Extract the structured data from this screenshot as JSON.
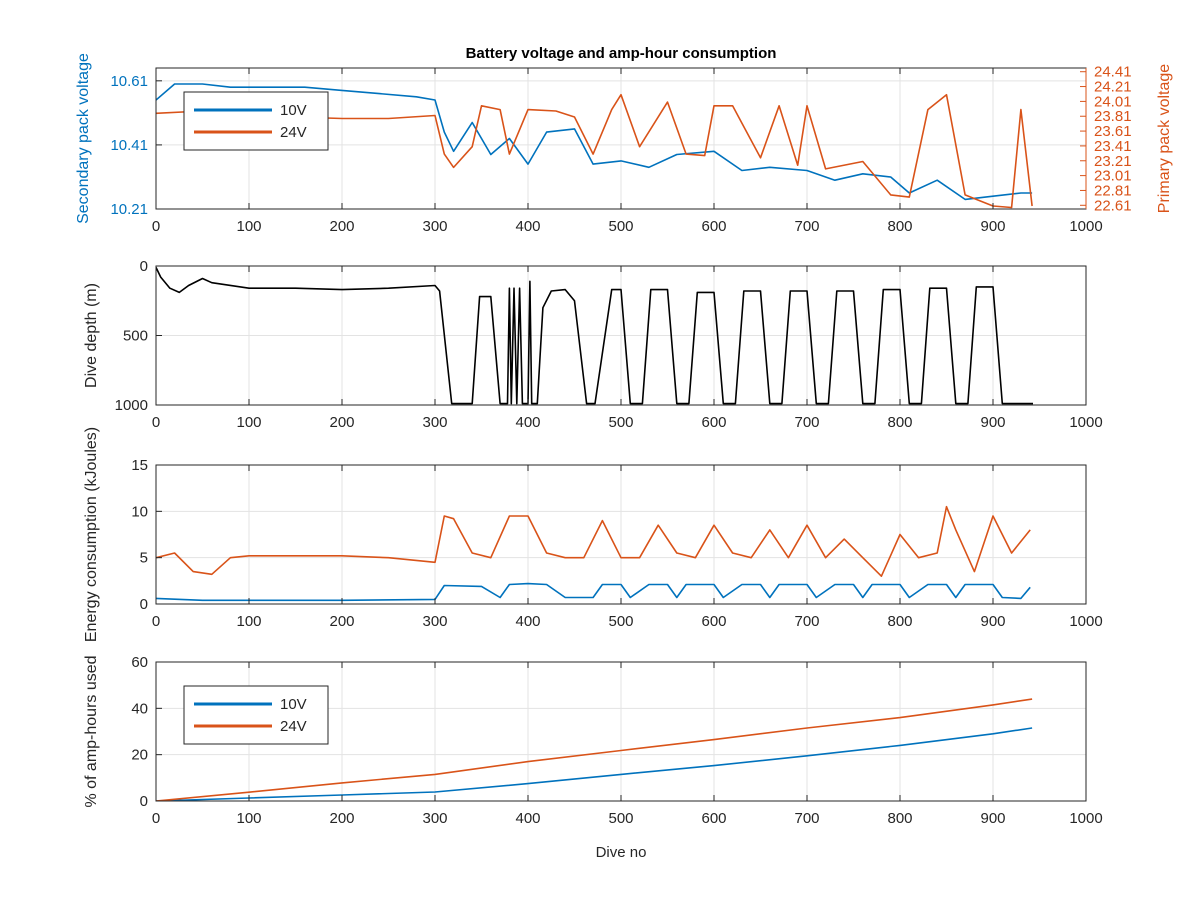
{
  "figure": {
    "title": "Battery voltage and amp-hour consumption"
  },
  "colors": {
    "blue": "#0072bd",
    "orange": "#d95319",
    "black": "#000000",
    "grid": "#e3e3e3",
    "axis": "#262626"
  },
  "chart_data": [
    {
      "type": "line",
      "title": "Battery voltage and amp-hour consumption",
      "xlabel": "",
      "ylabel": "Secondary pack voltage",
      "ylabel_right": "Primary pack voltage",
      "xlim": [
        0,
        1000
      ],
      "ylim": [
        10.21,
        10.65
      ],
      "ylim_right": [
        22.56,
        24.46
      ],
      "xticks": [
        0,
        100,
        200,
        300,
        400,
        500,
        600,
        700,
        800,
        900,
        1000
      ],
      "yticks": [
        10.21,
        10.41,
        10.61
      ],
      "yticks_right": [
        22.61,
        22.81,
        23.01,
        23.21,
        23.41,
        23.61,
        23.81,
        24.01,
        24.21,
        24.41
      ],
      "grid": true,
      "legend": {
        "placement": "top-left",
        "entries": [
          "10V",
          "24V"
        ]
      },
      "series": [
        {
          "name": "10V",
          "axis": "left",
          "color": "#0072bd",
          "x": [
            0,
            20,
            50,
            80,
            120,
            160,
            200,
            240,
            280,
            300,
            310,
            320,
            340,
            360,
            380,
            400,
            420,
            450,
            470,
            500,
            530,
            560,
            600,
            630,
            660,
            700,
            730,
            760,
            790,
            810,
            840,
            870,
            900,
            930,
            942
          ],
          "y": [
            10.55,
            10.6,
            10.6,
            10.59,
            10.59,
            10.59,
            10.58,
            10.57,
            10.56,
            10.55,
            10.45,
            10.39,
            10.48,
            10.38,
            10.43,
            10.35,
            10.45,
            10.46,
            10.35,
            10.36,
            10.34,
            10.38,
            10.39,
            10.33,
            10.34,
            10.33,
            10.3,
            10.32,
            10.31,
            10.26,
            10.3,
            10.24,
            10.25,
            10.26,
            10.26
          ]
        },
        {
          "name": "24V",
          "axis": "right",
          "color": "#d95319",
          "x": [
            0,
            50,
            100,
            200,
            250,
            300,
            310,
            320,
            340,
            350,
            370,
            380,
            400,
            430,
            450,
            470,
            490,
            500,
            520,
            550,
            570,
            590,
            600,
            620,
            650,
            670,
            690,
            700,
            720,
            760,
            790,
            810,
            830,
            850,
            870,
            880,
            900,
            920,
            930,
            942
          ],
          "y": [
            23.85,
            23.88,
            23.82,
            23.78,
            23.78,
            23.82,
            23.3,
            23.12,
            23.4,
            23.95,
            23.9,
            23.3,
            23.9,
            23.88,
            23.8,
            23.3,
            23.9,
            24.1,
            23.4,
            24.0,
            23.3,
            23.28,
            23.95,
            23.95,
            23.25,
            23.95,
            23.15,
            23.95,
            23.1,
            23.2,
            22.75,
            22.72,
            23.9,
            24.1,
            22.75,
            22.7,
            22.6,
            22.58,
            23.9,
            22.6
          ]
        }
      ]
    },
    {
      "type": "line",
      "xlabel": "",
      "ylabel": "Dive depth (m)",
      "xlim": [
        0,
        1000
      ],
      "ylim": [
        0,
        1000
      ],
      "y_reversed": true,
      "xticks": [
        0,
        100,
        200,
        300,
        400,
        500,
        600,
        700,
        800,
        900,
        1000
      ],
      "yticks": [
        0,
        500,
        1000
      ],
      "grid": true,
      "series": [
        {
          "name": "",
          "color": "#000000",
          "x": [
            0,
            5,
            15,
            25,
            35,
            50,
            60,
            100,
            150,
            200,
            250,
            300,
            305,
            318,
            340,
            348,
            360,
            370,
            378,
            380,
            382,
            385,
            388,
            391,
            394,
            400,
            402,
            404,
            410,
            416,
            425,
            440,
            450,
            463,
            472,
            490,
            500,
            510,
            523,
            532,
            550,
            560,
            573,
            582,
            600,
            610,
            623,
            632,
            650,
            660,
            673,
            682,
            700,
            710,
            723,
            732,
            750,
            760,
            773,
            782,
            800,
            810,
            823,
            832,
            850,
            860,
            873,
            882,
            900,
            910,
            923,
            932,
            943
          ],
          "y": [
            10,
            80,
            160,
            190,
            140,
            90,
            120,
            160,
            160,
            170,
            160,
            140,
            180,
            990,
            990,
            220,
            220,
            990,
            990,
            160,
            990,
            160,
            990,
            160,
            990,
            990,
            110,
            990,
            990,
            300,
            180,
            170,
            250,
            990,
            990,
            170,
            170,
            990,
            990,
            170,
            170,
            990,
            990,
            190,
            190,
            990,
            990,
            180,
            180,
            990,
            990,
            180,
            180,
            990,
            990,
            180,
            180,
            990,
            990,
            170,
            170,
            990,
            990,
            160,
            160,
            990,
            990,
            150,
            150,
            990,
            990,
            990,
            990
          ]
        }
      ]
    },
    {
      "type": "line",
      "xlabel": "",
      "ylabel": "Energy consumption (kJoules)",
      "xlim": [
        0,
        1000
      ],
      "ylim": [
        0,
        15
      ],
      "xticks": [
        0,
        100,
        200,
        300,
        400,
        500,
        600,
        700,
        800,
        900,
        1000
      ],
      "yticks": [
        0,
        5,
        10,
        15
      ],
      "grid": true,
      "series": [
        {
          "name": "",
          "color": "#d95319",
          "x": [
            0,
            20,
            40,
            60,
            80,
            100,
            150,
            200,
            250,
            300,
            310,
            320,
            340,
            360,
            380,
            400,
            420,
            440,
            460,
            480,
            500,
            520,
            540,
            560,
            580,
            600,
            620,
            640,
            660,
            680,
            700,
            720,
            740,
            760,
            780,
            800,
            820,
            840,
            850,
            860,
            880,
            900,
            920,
            940
          ],
          "y": [
            5,
            5.5,
            3.5,
            3.2,
            5,
            5.2,
            5.2,
            5.2,
            5,
            4.5,
            9.5,
            9.2,
            5.5,
            5,
            9.5,
            9.5,
            5.5,
            5,
            5,
            9,
            5,
            5,
            8.5,
            5.5,
            5,
            8.5,
            5.5,
            5,
            8,
            5,
            8.5,
            5,
            7,
            5,
            3,
            7.5,
            5,
            5.5,
            10.5,
            8,
            3.5,
            9.5,
            5.5,
            8
          ]
        },
        {
          "name": "",
          "color": "#0072bd",
          "x": [
            0,
            50,
            100,
            200,
            300,
            310,
            350,
            370,
            380,
            400,
            420,
            440,
            470,
            480,
            500,
            510,
            530,
            550,
            560,
            570,
            600,
            610,
            630,
            650,
            660,
            670,
            700,
            710,
            730,
            750,
            760,
            770,
            800,
            810,
            830,
            850,
            860,
            870,
            900,
            910,
            930,
            940
          ],
          "y": [
            0.6,
            0.4,
            0.4,
            0.4,
            0.5,
            2,
            1.9,
            0.7,
            2.1,
            2.2,
            2.1,
            0.7,
            0.7,
            2.1,
            2.1,
            0.7,
            2.1,
            2.1,
            0.7,
            2.1,
            2.1,
            0.7,
            2.1,
            2.1,
            0.7,
            2.1,
            2.1,
            0.7,
            2.1,
            2.1,
            0.7,
            2.1,
            2.1,
            0.7,
            2.1,
            2.1,
            0.7,
            2.1,
            2.1,
            0.7,
            0.6,
            1.8
          ]
        }
      ]
    },
    {
      "type": "line",
      "xlabel": "Dive no",
      "ylabel": "% of amp-hours used",
      "xlim": [
        0,
        1000
      ],
      "ylim": [
        0,
        60
      ],
      "xticks": [
        0,
        100,
        200,
        300,
        400,
        500,
        600,
        700,
        800,
        900,
        1000
      ],
      "yticks": [
        0,
        20,
        40,
        60
      ],
      "grid": true,
      "legend": {
        "placement": "top-left",
        "entries": [
          "10V",
          "24V"
        ]
      },
      "series": [
        {
          "name": "10V",
          "color": "#0072bd",
          "x": [
            0,
            100,
            200,
            300,
            400,
            500,
            600,
            700,
            800,
            900,
            942
          ],
          "y": [
            0,
            1.3,
            2.6,
            3.9,
            7.5,
            11.5,
            15.3,
            19.5,
            24,
            29,
            31.5
          ]
        },
        {
          "name": "24V",
          "color": "#d95319",
          "x": [
            0,
            100,
            200,
            300,
            400,
            500,
            600,
            700,
            800,
            900,
            942
          ],
          "y": [
            0,
            3.8,
            7.8,
            11.5,
            17,
            21.8,
            26.5,
            31.5,
            36,
            41.5,
            44
          ]
        }
      ]
    }
  ]
}
